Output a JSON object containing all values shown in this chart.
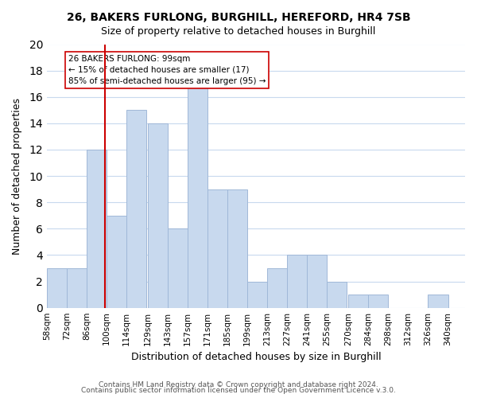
{
  "title1": "26, BAKERS FURLONG, BURGHILL, HEREFORD, HR4 7SB",
  "title2": "Size of property relative to detached houses in Burghill",
  "xlabel": "Distribution of detached houses by size in Burghill",
  "ylabel": "Number of detached properties",
  "bin_labels": [
    "58sqm",
    "72sqm",
    "86sqm",
    "100sqm",
    "114sqm",
    "129sqm",
    "143sqm",
    "157sqm",
    "171sqm",
    "185sqm",
    "199sqm",
    "213sqm",
    "227sqm",
    "241sqm",
    "255sqm",
    "270sqm",
    "284sqm",
    "298sqm",
    "312sqm",
    "326sqm",
    "340sqm"
  ],
  "bin_edges": [
    58,
    72,
    86,
    100,
    114,
    129,
    143,
    157,
    171,
    185,
    199,
    213,
    227,
    241,
    255,
    270,
    284,
    298,
    312,
    326,
    340
  ],
  "counts": [
    3,
    3,
    12,
    7,
    15,
    14,
    6,
    17,
    9,
    9,
    2,
    3,
    4,
    4,
    2,
    1,
    1,
    0,
    0,
    1
  ],
  "bar_color": "#c8d9ee",
  "bar_edge_color": "#a0b8d8",
  "vline_x": 99,
  "vline_color": "#cc0000",
  "annotation_text": "26 BAKERS FURLONG: 99sqm\n← 15% of detached houses are smaller (17)\n85% of semi-detached houses are larger (95) →",
  "annotation_box_color": "#ffffff",
  "annotation_box_edge": "#cc0000",
  "ylim": [
    0,
    20
  ],
  "yticks": [
    0,
    2,
    4,
    6,
    8,
    10,
    12,
    14,
    16,
    18,
    20
  ],
  "footer1": "Contains HM Land Registry data © Crown copyright and database right 2024.",
  "footer2": "Contains public sector information licensed under the Open Government Licence v.3.0.",
  "background_color": "#ffffff",
  "grid_color": "#c8d9ee"
}
